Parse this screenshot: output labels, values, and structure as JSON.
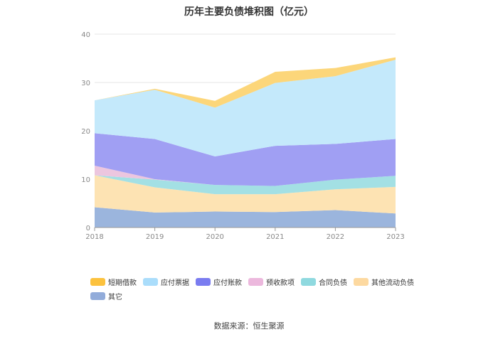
{
  "chart_data": {
    "type": "area",
    "stacked": true,
    "title": "历年主要负债堆积图（亿元）",
    "x": [
      "2018",
      "2019",
      "2020",
      "2021",
      "2022",
      "2023"
    ],
    "ylim": [
      0,
      40
    ],
    "yticks": [
      0,
      10,
      20,
      30,
      40
    ],
    "grid": true,
    "legend_position": "bottom",
    "series": [
      {
        "name": "其它",
        "color": "#9bb5dd",
        "values": [
          4.2,
          3.1,
          3.3,
          3.2,
          3.6,
          2.9
        ]
      },
      {
        "name": "其他流动负债",
        "color": "#fde3b3",
        "values": [
          6.6,
          5.2,
          3.6,
          3.7,
          4.3,
          5.5
        ]
      },
      {
        "name": "合同负债",
        "color": "#a3e0e4",
        "values": [
          0.0,
          1.6,
          1.9,
          1.7,
          2.0,
          2.3
        ]
      },
      {
        "name": "预收款项",
        "color": "#ecc6df",
        "values": [
          2.0,
          0.1,
          0.0,
          0.0,
          0.0,
          0.0
        ]
      },
      {
        "name": "应付账款",
        "color": "#a09ff3",
        "values": [
          6.7,
          8.3,
          5.9,
          8.3,
          7.4,
          7.6
        ]
      },
      {
        "name": "应付票据",
        "color": "#c4e9fb",
        "values": [
          6.8,
          10.2,
          10.1,
          13.0,
          14.0,
          16.4
        ]
      },
      {
        "name": "短期借款",
        "color": "#fcd67a",
        "values": [
          0.0,
          0.2,
          1.4,
          2.3,
          1.7,
          0.5
        ]
      }
    ],
    "legend_order": [
      "短期借款",
      "应付票据",
      "应付账款",
      "预收款项",
      "合同负债",
      "其他流动负债",
      "其它"
    ],
    "legend_colors": [
      "#fcc23e",
      "#aaddfb",
      "#7a7cf0",
      "#ecb8dd",
      "#8fd9df",
      "#fdd9a0",
      "#92acda"
    ]
  },
  "source": "数据来源：恒生聚源"
}
